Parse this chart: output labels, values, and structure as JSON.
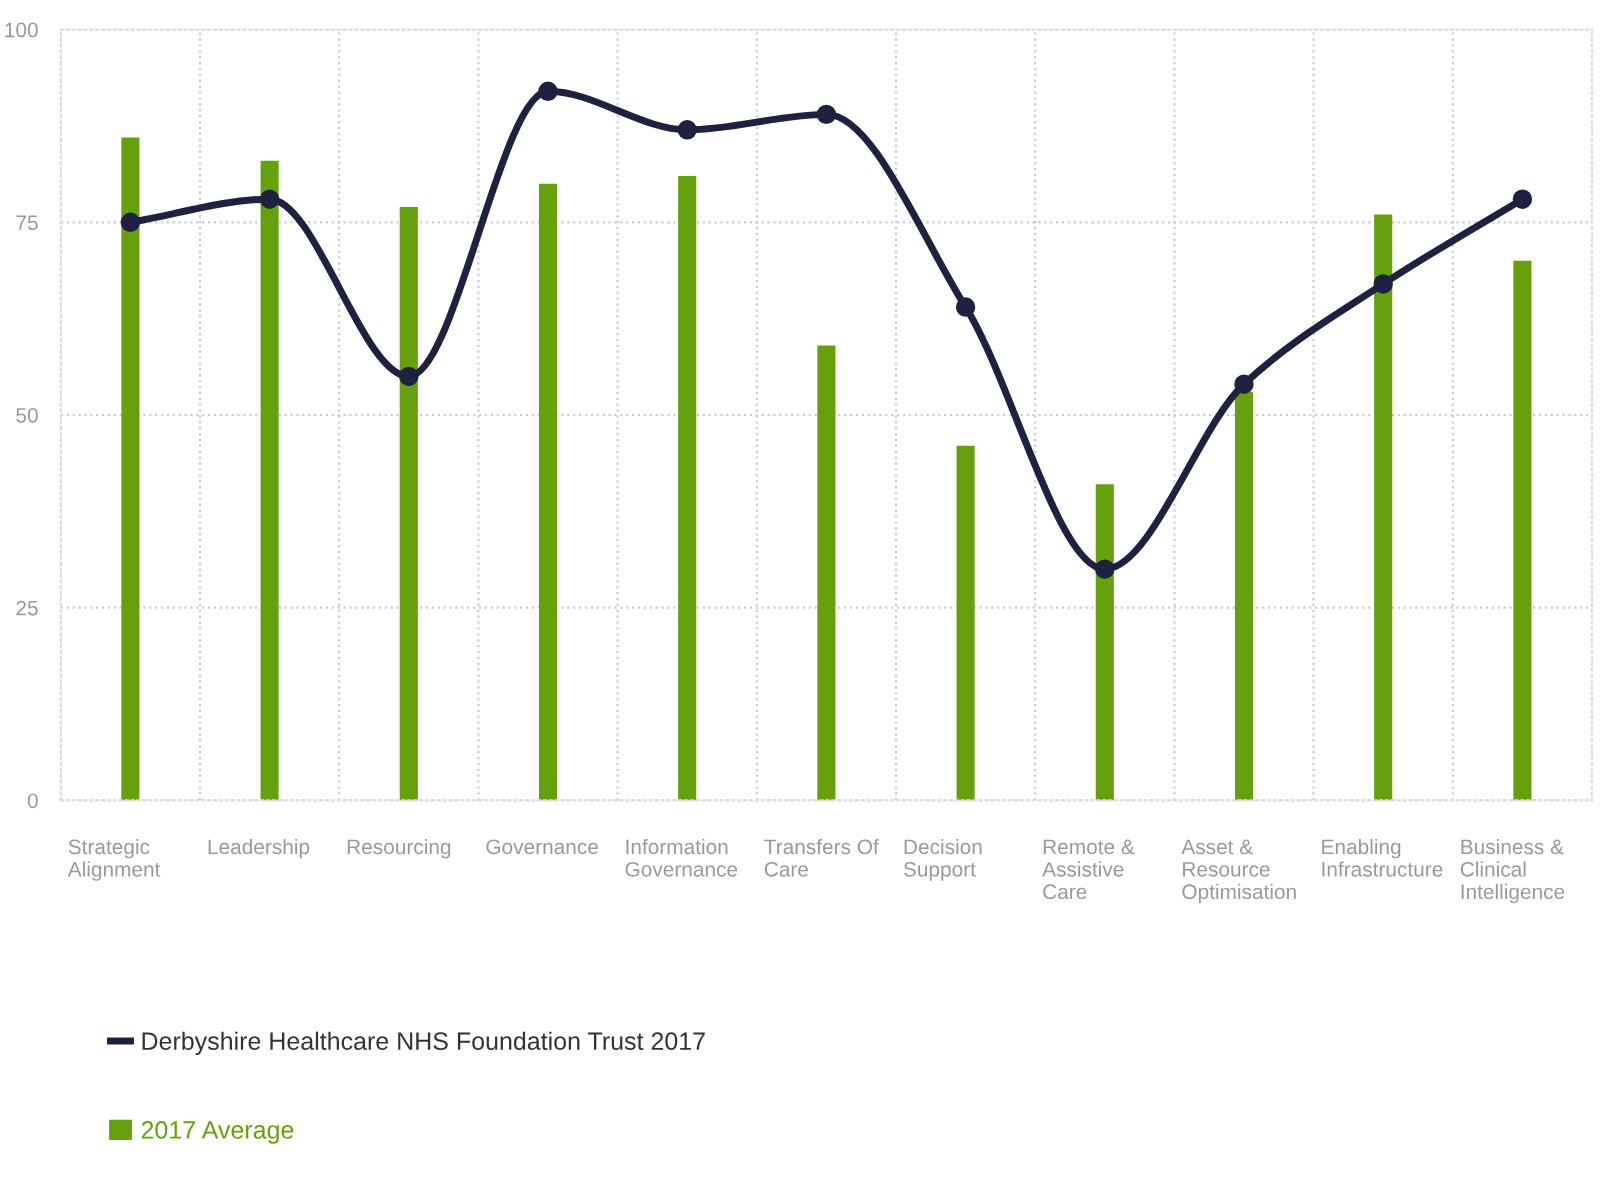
{
  "chart_data": {
    "type": "bar",
    "categories": [
      "Strategic Alignment",
      "Leadership",
      "Resourcing",
      "Governance",
      "Information Governance",
      "Transfers Of Care",
      "Decision Support",
      "Remote & Assistive Care",
      "Asset & Resource Optimisation",
      "Enabling Infrastructure",
      "Business & Clinical Intelligence"
    ],
    "series": [
      {
        "name": "Derbyshire Healthcare NHS Foundation Trust 2017",
        "type": "line",
        "color": "#1e2140",
        "marker": "circle",
        "values": [
          75,
          78,
          55,
          92,
          87,
          89,
          64,
          30,
          54,
          67,
          78
        ]
      },
      {
        "name": "2017 Average",
        "color": "#66a00c",
        "values": [
          86,
          83,
          77,
          80,
          81,
          59,
          46,
          41,
          53,
          76,
          70
        ]
      }
    ],
    "ylim": [
      0,
      100
    ],
    "yticks": [
      0,
      25,
      50,
      75,
      100
    ],
    "grid": true,
    "legend": "bottom left"
  }
}
